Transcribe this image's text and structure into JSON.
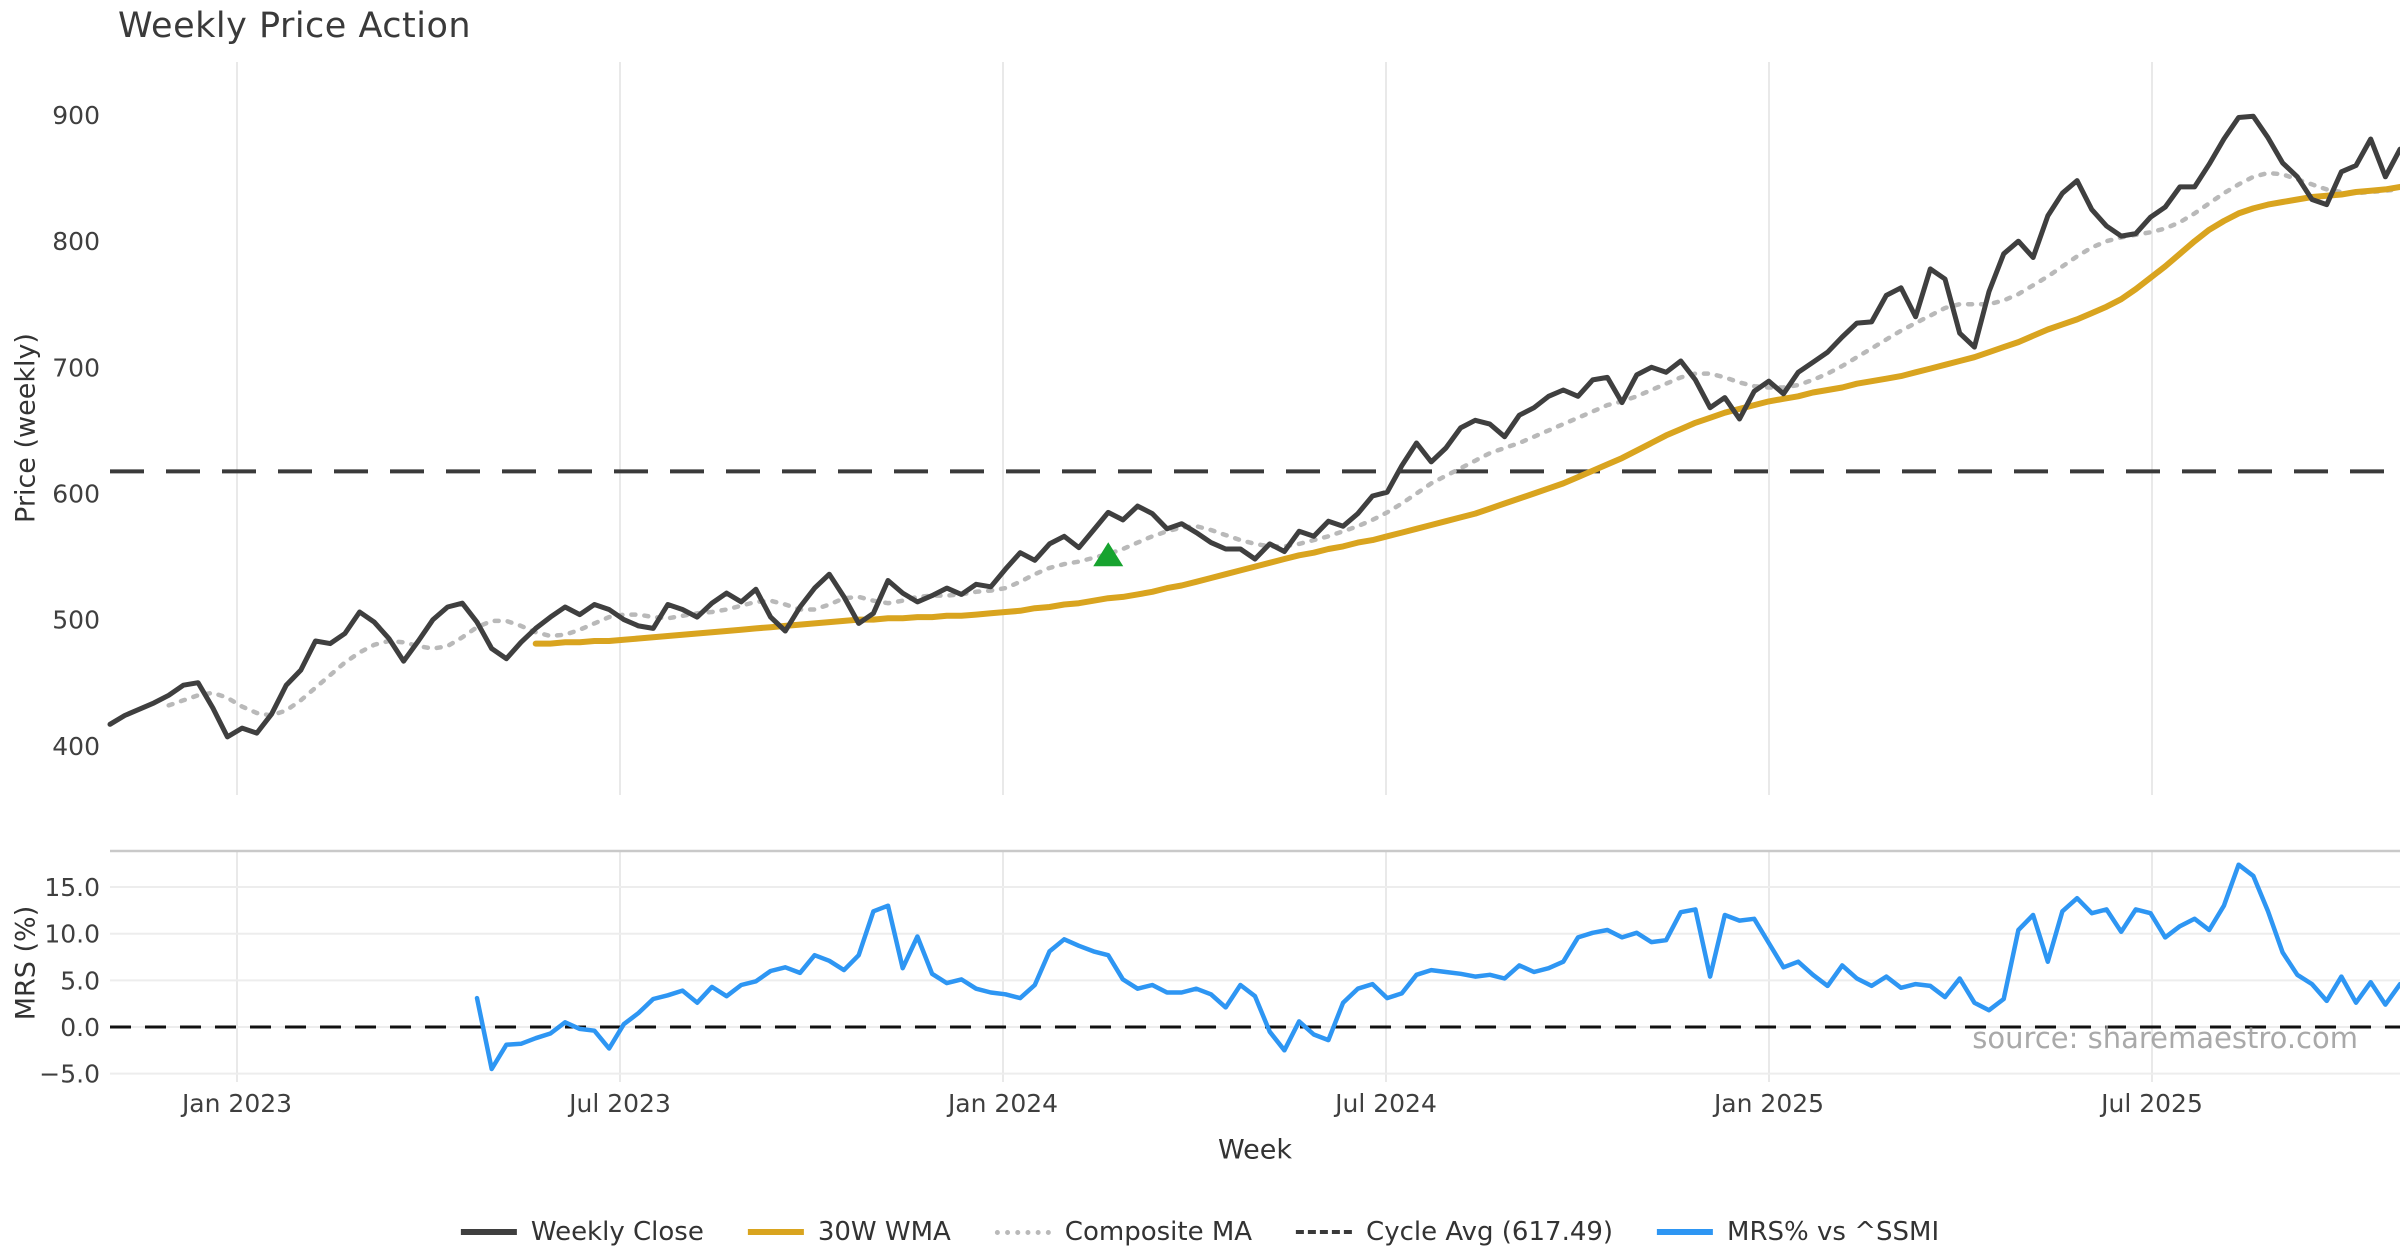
{
  "title": "Weekly Price Action",
  "watermark": "source: sharemaestro.com",
  "chart_data": {
    "type": "line",
    "title": "Weekly Price Action",
    "xlabel": "Week",
    "ylabel_price": "Price (weekly)",
    "ylabel_mrs": "MRS (%)",
    "x_axis": {
      "ticks": [
        {
          "label": "Jan 2023",
          "week": 8.65
        },
        {
          "label": "Jul 2023",
          "week": 34.74
        },
        {
          "label": "Jan 2024",
          "week": 60.83
        },
        {
          "label": "Jul 2024",
          "week": 86.92
        },
        {
          "label": "Jan 2025",
          "week": 113.01
        },
        {
          "label": "Jul 2025",
          "week": 139.1
        }
      ]
    },
    "price_axis": {
      "ticks": [
        {
          "v": 400,
          "label": "400"
        },
        {
          "v": 500,
          "label": "500"
        },
        {
          "v": 600,
          "label": "600"
        },
        {
          "v": 700,
          "label": "700"
        },
        {
          "v": 800,
          "label": "800"
        },
        {
          "v": 900,
          "label": "900"
        }
      ],
      "range": [
        353,
        943
      ]
    },
    "mrs_axis": {
      "ticks": [
        {
          "v": -5,
          "label": "−5.0"
        },
        {
          "v": 0,
          "label": "0.0"
        },
        {
          "v": 5,
          "label": "5.0"
        },
        {
          "v": 10,
          "label": "10.0"
        },
        {
          "v": 15,
          "label": "15.0"
        }
      ],
      "range": [
        -6,
        19
      ]
    },
    "cycle_avg": {
      "value": 617.49,
      "color": "#3a3a3a"
    },
    "mrs_zero_line": {
      "value": 0.0,
      "color": "#111111"
    },
    "buy_marker": {
      "week": 68,
      "value": 551,
      "color": "#17a32f",
      "shape": "triangle-up"
    },
    "series": {
      "weekly_close": {
        "name": "Weekly Close",
        "color": "#3f3f3f",
        "style": "solid",
        "start_week": 0,
        "values": [
          417,
          424,
          429,
          434,
          440,
          448,
          450,
          430,
          407,
          414,
          410,
          425,
          448,
          460,
          483,
          481,
          489,
          506,
          498,
          485,
          467,
          483,
          500,
          510,
          513,
          498,
          477,
          469,
          482,
          493,
          502,
          510,
          504,
          512,
          508,
          500,
          495,
          493,
          512,
          508,
          502,
          513,
          521,
          514,
          524,
          502,
          491,
          510,
          525,
          536,
          518,
          497,
          505,
          531,
          521,
          514,
          519,
          525,
          520,
          528,
          526,
          540,
          553,
          547,
          560,
          566,
          557,
          571,
          585,
          579,
          590,
          584,
          572,
          576,
          569,
          561,
          556,
          556,
          548,
          560,
          554,
          570,
          566,
          578,
          574,
          584,
          598,
          601,
          622,
          640,
          625,
          636,
          652,
          658,
          655,
          645,
          662,
          668,
          677,
          682,
          677,
          690,
          692,
          672,
          694,
          700,
          696,
          705,
          690,
          668,
          676,
          659,
          681,
          689,
          679,
          696,
          704,
          712,
          724,
          735,
          736,
          757,
          763,
          740,
          778,
          770,
          727,
          716,
          760,
          790,
          800,
          787,
          820,
          838,
          848,
          825,
          812,
          804,
          806,
          819,
          827,
          843,
          843,
          861,
          881,
          898,
          899,
          882,
          862,
          851,
          833,
          829,
          855,
          860,
          881,
          851,
          873
        ]
      },
      "wma30": {
        "name": "30W WMA",
        "color": "#d9a41f",
        "style": "solid",
        "start_week": 29,
        "values": [
          481,
          481,
          482,
          482,
          483,
          483,
          484,
          485,
          486,
          487,
          488,
          489,
          490,
          491,
          492,
          493,
          494,
          495,
          496,
          497,
          498,
          499,
          500,
          500,
          501,
          501,
          502,
          502,
          503,
          503,
          504,
          505,
          506,
          507,
          509,
          510,
          512,
          513,
          515,
          517,
          518,
          520,
          522,
          525,
          527,
          530,
          533,
          536,
          539,
          542,
          545,
          548,
          551,
          553,
          556,
          558,
          561,
          563,
          566,
          569,
          572,
          575,
          578,
          581,
          584,
          588,
          592,
          596,
          600,
          604,
          608,
          613,
          618,
          623,
          628,
          634,
          640,
          646,
          651,
          656,
          660,
          664,
          667,
          670,
          673,
          675,
          677,
          680,
          682,
          684,
          687,
          689,
          691,
          693,
          696,
          699,
          702,
          705,
          708,
          712,
          716,
          720,
          725,
          730,
          734,
          738,
          743,
          748,
          754,
          762,
          771,
          780,
          790,
          800,
          809,
          816,
          822,
          826,
          829,
          831,
          833,
          835,
          836,
          837,
          839,
          840,
          841,
          843
        ]
      },
      "composite_ma": {
        "name": "Composite MA",
        "color": "#b9b9b9",
        "style": "dotted",
        "start_week": 4,
        "values": [
          432,
          436,
          440,
          442,
          438,
          431,
          426,
          424,
          428,
          436,
          446,
          456,
          466,
          474,
          480,
          483,
          482,
          479,
          477,
          479,
          486,
          494,
          499,
          499,
          495,
          490,
          487,
          488,
          492,
          497,
          502,
          504,
          504,
          502,
          501,
          503,
          505,
          506,
          508,
          511,
          514,
          515,
          512,
          508,
          508,
          512,
          517,
          518,
          515,
          513,
          515,
          518,
          519,
          519,
          520,
          522,
          523,
          525,
          530,
          536,
          541,
          544,
          546,
          549,
          552,
          556,
          561,
          566,
          570,
          573,
          574,
          571,
          567,
          563,
          560,
          558,
          558,
          560,
          563,
          566,
          570,
          574,
          579,
          585,
          592,
          600,
          608,
          614,
          620,
          626,
          632,
          636,
          640,
          645,
          650,
          655,
          660,
          665,
          670,
          673,
          677,
          682,
          687,
          692,
          695,
          695,
          692,
          688,
          685,
          684,
          684,
          686,
          690,
          695,
          701,
          708,
          715,
          722,
          729,
          735,
          741,
          747,
          750,
          750,
          750,
          753,
          758,
          765,
          772,
          780,
          788,
          795,
          800,
          803,
          805,
          807,
          810,
          815,
          822,
          830,
          838,
          845,
          851,
          854,
          853,
          849,
          845,
          841,
          839,
          838,
          839,
          840,
          841
        ]
      },
      "mrs": {
        "name": "MRS% vs ^SSMI",
        "color": "#2e96f3",
        "style": "solid",
        "start_week": 25,
        "values": [
          3.1,
          -4.5,
          -1.9,
          -1.8,
          -1.2,
          -0.7,
          0.5,
          -0.2,
          -0.4,
          -2.3,
          0.3,
          1.5,
          3.0,
          3.4,
          3.9,
          2.6,
          4.3,
          3.3,
          4.5,
          4.9,
          6.0,
          6.4,
          5.8,
          7.7,
          7.1,
          6.1,
          7.7,
          12.4,
          13.0,
          6.3,
          9.7,
          5.7,
          4.7,
          5.1,
          4.1,
          3.7,
          3.5,
          3.1,
          4.5,
          8.1,
          9.4,
          8.7,
          8.1,
          7.7,
          5.1,
          4.1,
          4.5,
          3.7,
          3.7,
          4.1,
          3.5,
          2.1,
          4.5,
          3.3,
          -0.5,
          -2.5,
          0.6,
          -0.8,
          -1.4,
          2.6,
          4.1,
          4.6,
          3.1,
          3.6,
          5.6,
          6.1,
          5.9,
          5.7,
          5.4,
          5.6,
          5.2,
          6.6,
          5.9,
          6.3,
          7.0,
          9.6,
          10.1,
          10.4,
          9.6,
          10.1,
          9.1,
          9.3,
          12.3,
          12.6,
          5.4,
          12.0,
          11.4,
          11.6,
          9.0,
          6.4,
          7.0,
          5.6,
          4.4,
          6.6,
          5.2,
          4.4,
          5.4,
          4.2,
          4.6,
          4.4,
          3.2,
          5.2,
          2.6,
          1.8,
          3.0,
          10.4,
          12.0,
          7.0,
          12.4,
          13.8,
          12.2,
          12.6,
          10.2,
          12.6,
          12.2,
          9.6,
          10.8,
          11.6,
          10.4,
          13.0,
          17.4,
          16.2,
          12.4,
          8.0,
          5.6,
          4.6,
          2.8,
          5.4,
          2.6,
          4.8,
          2.4,
          4.6
        ]
      }
    },
    "legend": [
      {
        "label": "Weekly Close",
        "color": "#3f3f3f",
        "style": "solid"
      },
      {
        "label": "30W WMA",
        "color": "#d9a41f",
        "style": "solid"
      },
      {
        "label": "Composite MA",
        "color": "#b9b9b9",
        "style": "dotted"
      },
      {
        "label": "Cycle Avg (617.49)",
        "color": "#3a3a3a",
        "style": "dashed"
      },
      {
        "label": "MRS% vs ^SSMI",
        "color": "#2e96f3",
        "style": "solid"
      }
    ],
    "layout_hints": {
      "grid": "vertical major (Jan/Jul) both panels; horizontal gridlines lower panel only",
      "legend_position": "bottom center",
      "panels": 2
    }
  }
}
